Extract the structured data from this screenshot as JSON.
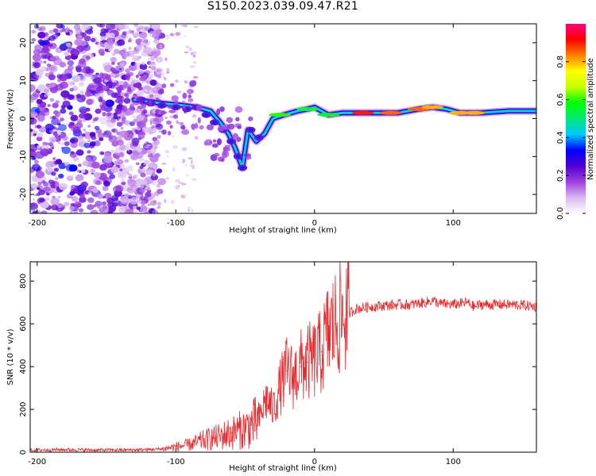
{
  "title": "S150.2023.039.09.47.R21",
  "charts": [
    {
      "type": "heatmap",
      "xlabel": "Height of straight line (km)",
      "ylabel": "Frequency (Hz)",
      "xlim": [
        -205,
        160
      ],
      "ylim": [
        -25,
        25
      ],
      "xticks": [
        -200,
        -100,
        0,
        100
      ],
      "yticks": [
        -20,
        -10,
        0,
        10,
        20
      ],
      "colorbar_label": "Normalized spectral amplitude",
      "colorbar_ticks": [
        "0.0",
        "0.2",
        "0.4",
        "0.6",
        "0.8"
      ],
      "colorbar_range": [
        0,
        1
      ],
      "colormap": [
        "#ffffff",
        "#d8b8f0",
        "#a040e0",
        "#5000d0",
        "#0000ff",
        "#00c8ff",
        "#00e878",
        "#00ff00",
        "#c8ff00",
        "#ffff00",
        "#ff8000",
        "#ff0000",
        "#ff0080"
      ],
      "ridge": [
        [
          -130,
          5
        ],
        [
          -110,
          4
        ],
        [
          -95,
          3.5
        ],
        [
          -85,
          3
        ],
        [
          -75,
          2
        ],
        [
          -68,
          -1
        ],
        [
          -62,
          -4
        ],
        [
          -57,
          -8
        ],
        [
          -52,
          -13
        ],
        [
          -48,
          -3
        ],
        [
          -42,
          -6
        ],
        [
          -36,
          -4
        ],
        [
          -30,
          0
        ],
        [
          -22,
          1
        ],
        [
          -12,
          2
        ],
        [
          -5,
          2.5
        ],
        [
          0,
          3
        ],
        [
          10,
          1
        ],
        [
          20,
          1.5
        ],
        [
          40,
          1.5
        ],
        [
          60,
          1.5
        ],
        [
          75,
          2.5
        ],
        [
          85,
          3
        ],
        [
          95,
          2.5
        ],
        [
          105,
          1.5
        ],
        [
          120,
          1.5
        ],
        [
          140,
          2
        ],
        [
          160,
          2
        ]
      ]
    },
    {
      "type": "line",
      "xlabel": "Height of straight line (km)",
      "ylabel": "SNR (10 * v/v)",
      "xlim": [
        -205,
        160
      ],
      "ylim": [
        0,
        890
      ],
      "xticks": [
        -200,
        -100,
        0,
        100
      ],
      "yticks": [
        0,
        200,
        400,
        600,
        800
      ],
      "series": [
        {
          "color": "#e8282c",
          "x": [
            -205,
            -180,
            -160,
            -140,
            -120,
            -110,
            -100,
            -90,
            -80,
            -70,
            -60,
            -50,
            -40,
            -35,
            -30,
            -25,
            -20,
            -15,
            -10,
            -5,
            0,
            5,
            10,
            15,
            20,
            25,
            30,
            40,
            50,
            60,
            70,
            80,
            85,
            90,
            100,
            110,
            115,
            120,
            130,
            140,
            150,
            160
          ],
          "y": [
            10,
            12,
            10,
            10,
            12,
            15,
            25,
            35,
            55,
            70,
            90,
            110,
            150,
            250,
            200,
            300,
            380,
            350,
            400,
            420,
            430,
            470,
            560,
            600,
            640,
            650,
            670,
            680,
            685,
            690,
            690,
            700,
            710,
            695,
            690,
            700,
            680,
            690,
            690,
            690,
            688,
            680
          ]
        }
      ]
    }
  ]
}
